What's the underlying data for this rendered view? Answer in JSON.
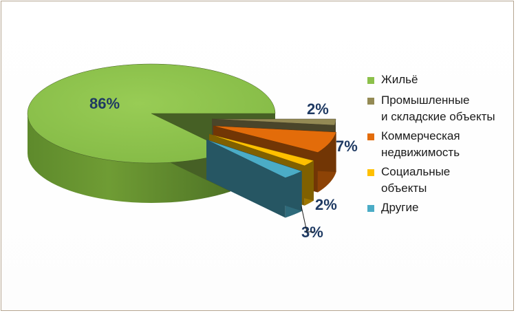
{
  "chart_data": {
    "type": "pie",
    "title": "",
    "three_d": true,
    "exploded": true,
    "series": [
      {
        "categories": [
          "Жильё",
          "Промышленные и складские объекты",
          "Коммерческая недвижимость",
          "Социальные объекты",
          "Другие"
        ],
        "values": [
          86,
          2,
          7,
          2,
          3
        ]
      }
    ],
    "data_labels": [
      "86%",
      "2%",
      "7%",
      "2%",
      "3%"
    ],
    "legend": {
      "position": "right",
      "items": [
        {
          "lines": [
            "Жильё"
          ],
          "color": "#8cc04a"
        },
        {
          "lines": [
            "Промышленные",
            "и складские объекты"
          ],
          "color": "#948a54"
        },
        {
          "lines": [
            "Коммерческая",
            "недвижимость"
          ],
          "color": "#e36c0a"
        },
        {
          "lines": [
            "Социальные",
            "объекты"
          ],
          "color": "#ffc000"
        },
        {
          "lines": [
            "Другие"
          ],
          "color": "#4bacc6"
        }
      ]
    }
  }
}
